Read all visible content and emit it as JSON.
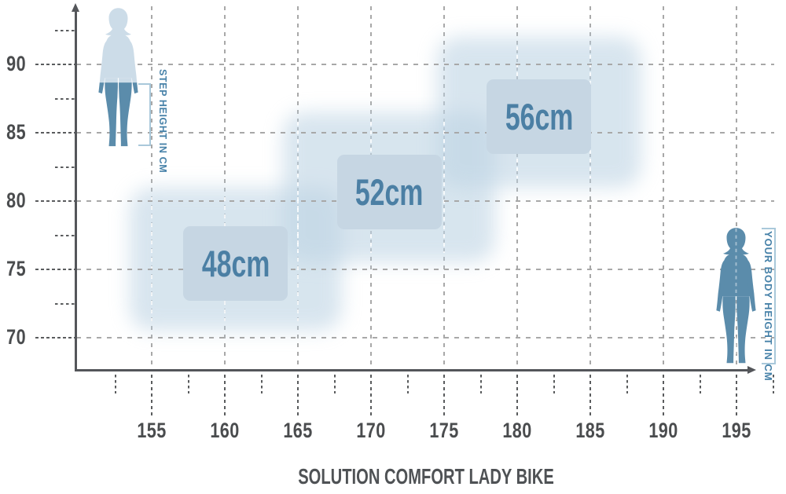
{
  "title": "SOLUTION COMFORT LADY BIKE",
  "left_figure": {
    "label": "STEP HEIGHT IN CM"
  },
  "right_figure": {
    "label": "YOUR BODY HEIGHT IN CM"
  },
  "colors": {
    "accent_blue": "#4681a8",
    "grid_gray": "#a8a8a8",
    "tick_dark": "#5a5c5e",
    "axis": "#54565a",
    "label_gray": "#4a4c4e",
    "bracket_blue": "#a9c8da",
    "region_fill": "#bed4e4",
    "label_box_fill": "#c6d6e3",
    "body_light": "#ccdce8",
    "body_dark": "#5b8cab",
    "size_text_blue": "#4b7fa4",
    "title_gray": "#4f5255"
  },
  "chart_data": {
    "type": "area",
    "subtype": "overlapping size-range regions (bike frame size vs rider measurements)",
    "title": "SOLUTION COMFORT LADY BIKE",
    "x_axis": {
      "label": "YOUR BODY HEIGHT IN CM",
      "unit": "cm",
      "ticks": [
        155,
        160,
        165,
        170,
        175,
        180,
        185,
        190,
        195
      ],
      "minor_step": 2.5,
      "range_shown": [
        150,
        197.5
      ]
    },
    "y_axis": {
      "label": "STEP HEIGHT IN CM",
      "unit": "cm",
      "ticks": [
        70,
        75,
        80,
        85,
        90
      ],
      "minor_step": 2.5,
      "range_shown": [
        67.5,
        92.5
      ]
    },
    "grid": "dashed",
    "regions": [
      {
        "frame_size": "48cm",
        "body_height_range": [
          153.5,
          168.0
        ],
        "step_height_range": [
          70.5,
          81.0
        ]
      },
      {
        "frame_size": "52cm",
        "body_height_range": [
          164.0,
          178.5
        ],
        "step_height_range": [
          75.5,
          86.5
        ]
      },
      {
        "frame_size": "56cm",
        "body_height_range": [
          174.5,
          188.5
        ],
        "step_height_range": [
          81.0,
          92.0
        ]
      }
    ]
  }
}
